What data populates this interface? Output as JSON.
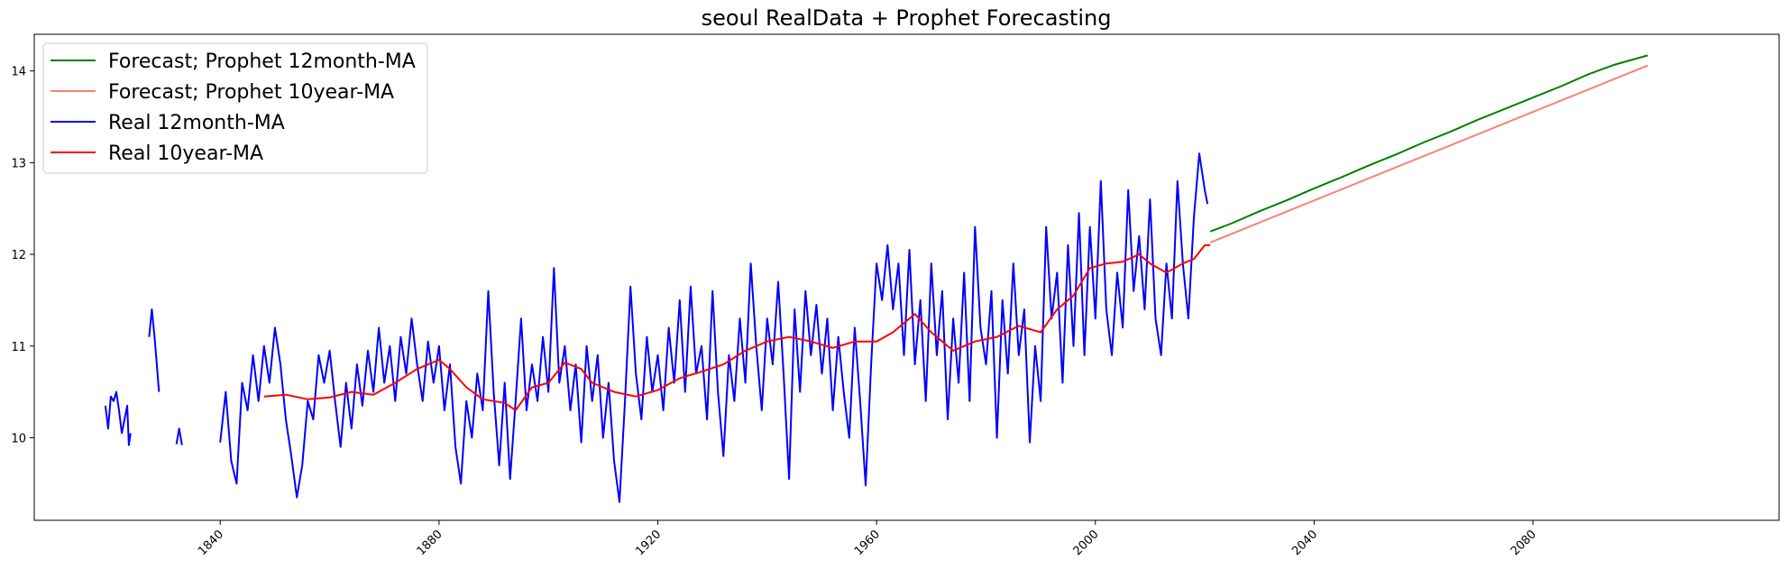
{
  "chart_data": {
    "type": "line",
    "title": "seoul RealData + Prophet Forecasting",
    "xlabel": "",
    "ylabel": "",
    "xlim": [
      1806,
      2125
    ],
    "ylim": [
      9.1,
      14.4
    ],
    "x_ticks": [
      1840,
      1880,
      1920,
      1960,
      2000,
      2040,
      2080
    ],
    "y_ticks": [
      10,
      11,
      12,
      13,
      14
    ],
    "grid": false,
    "legend_position": "top-left",
    "series": [
      {
        "name": "Forecast; Prophet 12month-MA",
        "color": "#008000",
        "points": [
          [
            2021,
            12.25
          ],
          [
            2025,
            12.34
          ],
          [
            2030,
            12.47
          ],
          [
            2035,
            12.59
          ],
          [
            2040,
            12.72
          ],
          [
            2045,
            12.84
          ],
          [
            2050,
            12.97
          ],
          [
            2055,
            13.09
          ],
          [
            2060,
            13.22
          ],
          [
            2065,
            13.34
          ],
          [
            2070,
            13.47
          ],
          [
            2075,
            13.59
          ],
          [
            2080,
            13.71
          ],
          [
            2085,
            13.83
          ],
          [
            2090,
            13.96
          ],
          [
            2095,
            14.07
          ],
          [
            2101,
            14.17
          ]
        ]
      },
      {
        "name": "Forecast; Prophet 10year-MA",
        "color": "#fa8072",
        "points": [
          [
            2021,
            12.13
          ],
          [
            2101,
            14.06
          ]
        ]
      },
      {
        "name": "Real 12month-MA",
        "color": "#0000ff",
        "segments": [
          [
            [
              1819,
              10.35
            ],
            [
              1819.5,
              10.1
            ],
            [
              1820,
              10.45
            ],
            [
              1820.5,
              10.4
            ],
            [
              1821,
              10.5
            ],
            [
              1821.5,
              10.3
            ],
            [
              1822,
              10.05
            ],
            [
              1822.5,
              10.2
            ],
            [
              1823,
              10.35
            ],
            [
              1823.3,
              9.92
            ],
            [
              1823.6,
              10.05
            ]
          ],
          [
            [
              1827,
              11.1
            ],
            [
              1827.5,
              11.4
            ],
            [
              1828,
              11.1
            ],
            [
              1828.4,
              10.8
            ],
            [
              1828.8,
              10.5
            ]
          ],
          [
            [
              1832,
              9.93
            ],
            [
              1832.5,
              10.1
            ],
            [
              1833,
              9.92
            ]
          ],
          [
            [
              1840,
              9.95
            ],
            [
              1841,
              10.5
            ],
            [
              1842,
              9.75
            ],
            [
              1843,
              9.5
            ],
            [
              1844,
              10.6
            ],
            [
              1845,
              10.3
            ],
            [
              1846,
              10.9
            ],
            [
              1847,
              10.4
            ],
            [
              1848,
              11.0
            ],
            [
              1849,
              10.6
            ],
            [
              1850,
              11.2
            ],
            [
              1851,
              10.8
            ],
            [
              1852,
              10.2
            ],
            [
              1853,
              9.8
            ],
            [
              1854,
              9.35
            ],
            [
              1855,
              9.7
            ],
            [
              1856,
              10.4
            ],
            [
              1857,
              10.2
            ],
            [
              1858,
              10.9
            ],
            [
              1859,
              10.6
            ],
            [
              1860,
              10.95
            ],
            [
              1861,
              10.4
            ],
            [
              1862,
              9.9
            ],
            [
              1863,
              10.6
            ],
            [
              1864,
              10.1
            ],
            [
              1865,
              10.8
            ],
            [
              1866,
              10.35
            ],
            [
              1867,
              10.95
            ],
            [
              1868,
              10.5
            ],
            [
              1869,
              11.2
            ],
            [
              1870,
              10.6
            ],
            [
              1871,
              11.0
            ],
            [
              1872,
              10.4
            ],
            [
              1873,
              11.1
            ],
            [
              1874,
              10.7
            ],
            [
              1875,
              11.3
            ],
            [
              1876,
              10.8
            ],
            [
              1877,
              10.4
            ],
            [
              1878,
              11.05
            ],
            [
              1879,
              10.6
            ],
            [
              1880,
              11.0
            ],
            [
              1881,
              10.3
            ],
            [
              1882,
              10.8
            ],
            [
              1883,
              9.9
            ],
            [
              1884,
              9.5
            ],
            [
              1885,
              10.4
            ],
            [
              1886,
              10.0
            ],
            [
              1887,
              10.7
            ],
            [
              1888,
              10.3
            ],
            [
              1889,
              11.6
            ],
            [
              1890,
              10.5
            ],
            [
              1891,
              9.7
            ],
            [
              1892,
              10.6
            ],
            [
              1893,
              9.55
            ],
            [
              1894,
              10.4
            ],
            [
              1895,
              11.3
            ],
            [
              1896,
              10.3
            ],
            [
              1897,
              10.8
            ],
            [
              1898,
              10.4
            ],
            [
              1899,
              11.1
            ],
            [
              1900,
              10.5
            ],
            [
              1901,
              11.85
            ],
            [
              1902,
              10.6
            ],
            [
              1903,
              11.0
            ],
            [
              1904,
              10.3
            ],
            [
              1905,
              10.8
            ],
            [
              1906,
              9.95
            ],
            [
              1907,
              11.0
            ],
            [
              1908,
              10.4
            ],
            [
              1909,
              10.9
            ],
            [
              1910,
              10.0
            ],
            [
              1911,
              10.6
            ],
            [
              1912,
              9.75
            ],
            [
              1913,
              9.3
            ],
            [
              1914,
              10.4
            ],
            [
              1915,
              11.65
            ],
            [
              1916,
              10.7
            ],
            [
              1917,
              10.2
            ],
            [
              1918,
              11.1
            ],
            [
              1919,
              10.5
            ],
            [
              1920,
              10.9
            ],
            [
              1921,
              10.3
            ],
            [
              1922,
              11.2
            ],
            [
              1923,
              10.6
            ],
            [
              1924,
              11.5
            ],
            [
              1925,
              10.5
            ],
            [
              1926,
              11.65
            ],
            [
              1927,
              10.7
            ],
            [
              1928,
              11.0
            ],
            [
              1929,
              10.2
            ],
            [
              1930,
              11.6
            ],
            [
              1931,
              10.5
            ],
            [
              1932,
              9.8
            ],
            [
              1933,
              10.9
            ],
            [
              1934,
              10.4
            ],
            [
              1935,
              11.3
            ],
            [
              1936,
              10.6
            ],
            [
              1937,
              11.9
            ],
            [
              1938,
              11.0
            ],
            [
              1939,
              10.3
            ],
            [
              1940,
              11.3
            ],
            [
              1941,
              10.8
            ],
            [
              1942,
              11.7
            ],
            [
              1943,
              10.7
            ],
            [
              1944,
              9.55
            ],
            [
              1945,
              11.4
            ],
            [
              1946,
              10.5
            ],
            [
              1947,
              11.6
            ],
            [
              1948,
              10.9
            ],
            [
              1949,
              11.45
            ],
            [
              1950,
              10.7
            ],
            [
              1951,
              11.3
            ],
            [
              1952,
              10.3
            ],
            [
              1953,
              11.1
            ],
            [
              1954,
              10.5
            ],
            [
              1955,
              10.0
            ],
            [
              1956,
              11.2
            ],
            [
              1957,
              10.4
            ],
            [
              1958,
              9.48
            ],
            [
              1959,
              10.8
            ],
            [
              1960,
              11.9
            ],
            [
              1961,
              11.5
            ],
            [
              1962,
              12.1
            ],
            [
              1963,
              11.4
            ],
            [
              1964,
              11.9
            ],
            [
              1965,
              10.9
            ],
            [
              1966,
              12.05
            ],
            [
              1967,
              10.8
            ],
            [
              1968,
              11.5
            ],
            [
              1969,
              10.4
            ],
            [
              1970,
              11.9
            ],
            [
              1971,
              10.9
            ],
            [
              1972,
              11.6
            ],
            [
              1973,
              10.2
            ],
            [
              1974,
              11.3
            ],
            [
              1975,
              10.6
            ],
            [
              1976,
              11.8
            ],
            [
              1977,
              10.4
            ],
            [
              1978,
              12.3
            ],
            [
              1979,
              11.2
            ],
            [
              1980,
              10.8
            ],
            [
              1981,
              11.6
            ],
            [
              1982,
              10.0
            ],
            [
              1983,
              11.5
            ],
            [
              1984,
              10.7
            ],
            [
              1985,
              11.9
            ],
            [
              1986,
              10.9
            ],
            [
              1987,
              11.4
            ],
            [
              1988,
              9.95
            ],
            [
              1989,
              11.0
            ],
            [
              1990,
              10.4
            ],
            [
              1991,
              12.3
            ],
            [
              1992,
              11.3
            ],
            [
              1993,
              11.8
            ],
            [
              1994,
              10.6
            ],
            [
              1995,
              12.1
            ],
            [
              1996,
              11.0
            ],
            [
              1997,
              12.45
            ],
            [
              1998,
              10.9
            ],
            [
              1999,
              12.3
            ],
            [
              2000,
              11.3
            ],
            [
              2001,
              12.8
            ],
            [
              2002,
              11.4
            ],
            [
              2003,
              10.9
            ],
            [
              2004,
              11.8
            ],
            [
              2005,
              11.2
            ],
            [
              2006,
              12.7
            ],
            [
              2007,
              11.6
            ],
            [
              2008,
              12.2
            ],
            [
              2009,
              11.4
            ],
            [
              2010,
              12.6
            ],
            [
              2011,
              11.3
            ],
            [
              2012,
              10.9
            ],
            [
              2013,
              11.9
            ],
            [
              2014,
              11.3
            ],
            [
              2015,
              12.8
            ],
            [
              2016,
              11.9
            ],
            [
              2017,
              11.3
            ],
            [
              2018,
              12.4
            ],
            [
              2019,
              13.1
            ],
            [
              2020,
              12.7
            ],
            [
              2020.5,
              12.55
            ]
          ]
        ]
      },
      {
        "name": "Real 10year-MA",
        "color": "#ff0000",
        "segments": [
          [
            [
              1848,
              10.45
            ],
            [
              1852,
              10.47
            ],
            [
              1856,
              10.42
            ],
            [
              1860,
              10.44
            ],
            [
              1864,
              10.5
            ],
            [
              1868,
              10.47
            ],
            [
              1872,
              10.6
            ],
            [
              1876,
              10.75
            ],
            [
              1880,
              10.85
            ],
            [
              1882,
              10.75
            ],
            [
              1885,
              10.55
            ],
            [
              1888,
              10.42
            ],
            [
              1892,
              10.38
            ],
            [
              1894,
              10.3
            ],
            [
              1897,
              10.55
            ],
            [
              1900,
              10.6
            ],
            [
              1903,
              10.82
            ],
            [
              1906,
              10.75
            ],
            [
              1908,
              10.6
            ],
            [
              1912,
              10.5
            ],
            [
              1916,
              10.45
            ],
            [
              1920,
              10.52
            ],
            [
              1924,
              10.65
            ],
            [
              1928,
              10.72
            ],
            [
              1932,
              10.8
            ],
            [
              1936,
              10.95
            ],
            [
              1940,
              11.05
            ],
            [
              1944,
              11.1
            ],
            [
              1948,
              11.05
            ],
            [
              1952,
              10.98
            ],
            [
              1956,
              11.05
            ],
            [
              1960,
              11.05
            ],
            [
              1963,
              11.15
            ],
            [
              1967,
              11.35
            ],
            [
              1970,
              11.15
            ],
            [
              1974,
              10.95
            ],
            [
              1978,
              11.05
            ],
            [
              1982,
              11.1
            ],
            [
              1986,
              11.22
            ],
            [
              1990,
              11.15
            ],
            [
              1993,
              11.4
            ],
            [
              1996,
              11.55
            ],
            [
              1999,
              11.85
            ],
            [
              2002,
              11.9
            ],
            [
              2005,
              11.92
            ],
            [
              2008,
              12.0
            ],
            [
              2010,
              11.9
            ],
            [
              2013,
              11.8
            ],
            [
              2016,
              11.9
            ],
            [
              2018,
              11.95
            ],
            [
              2020,
              12.1
            ],
            [
              2021,
              12.1
            ]
          ]
        ]
      }
    ]
  }
}
